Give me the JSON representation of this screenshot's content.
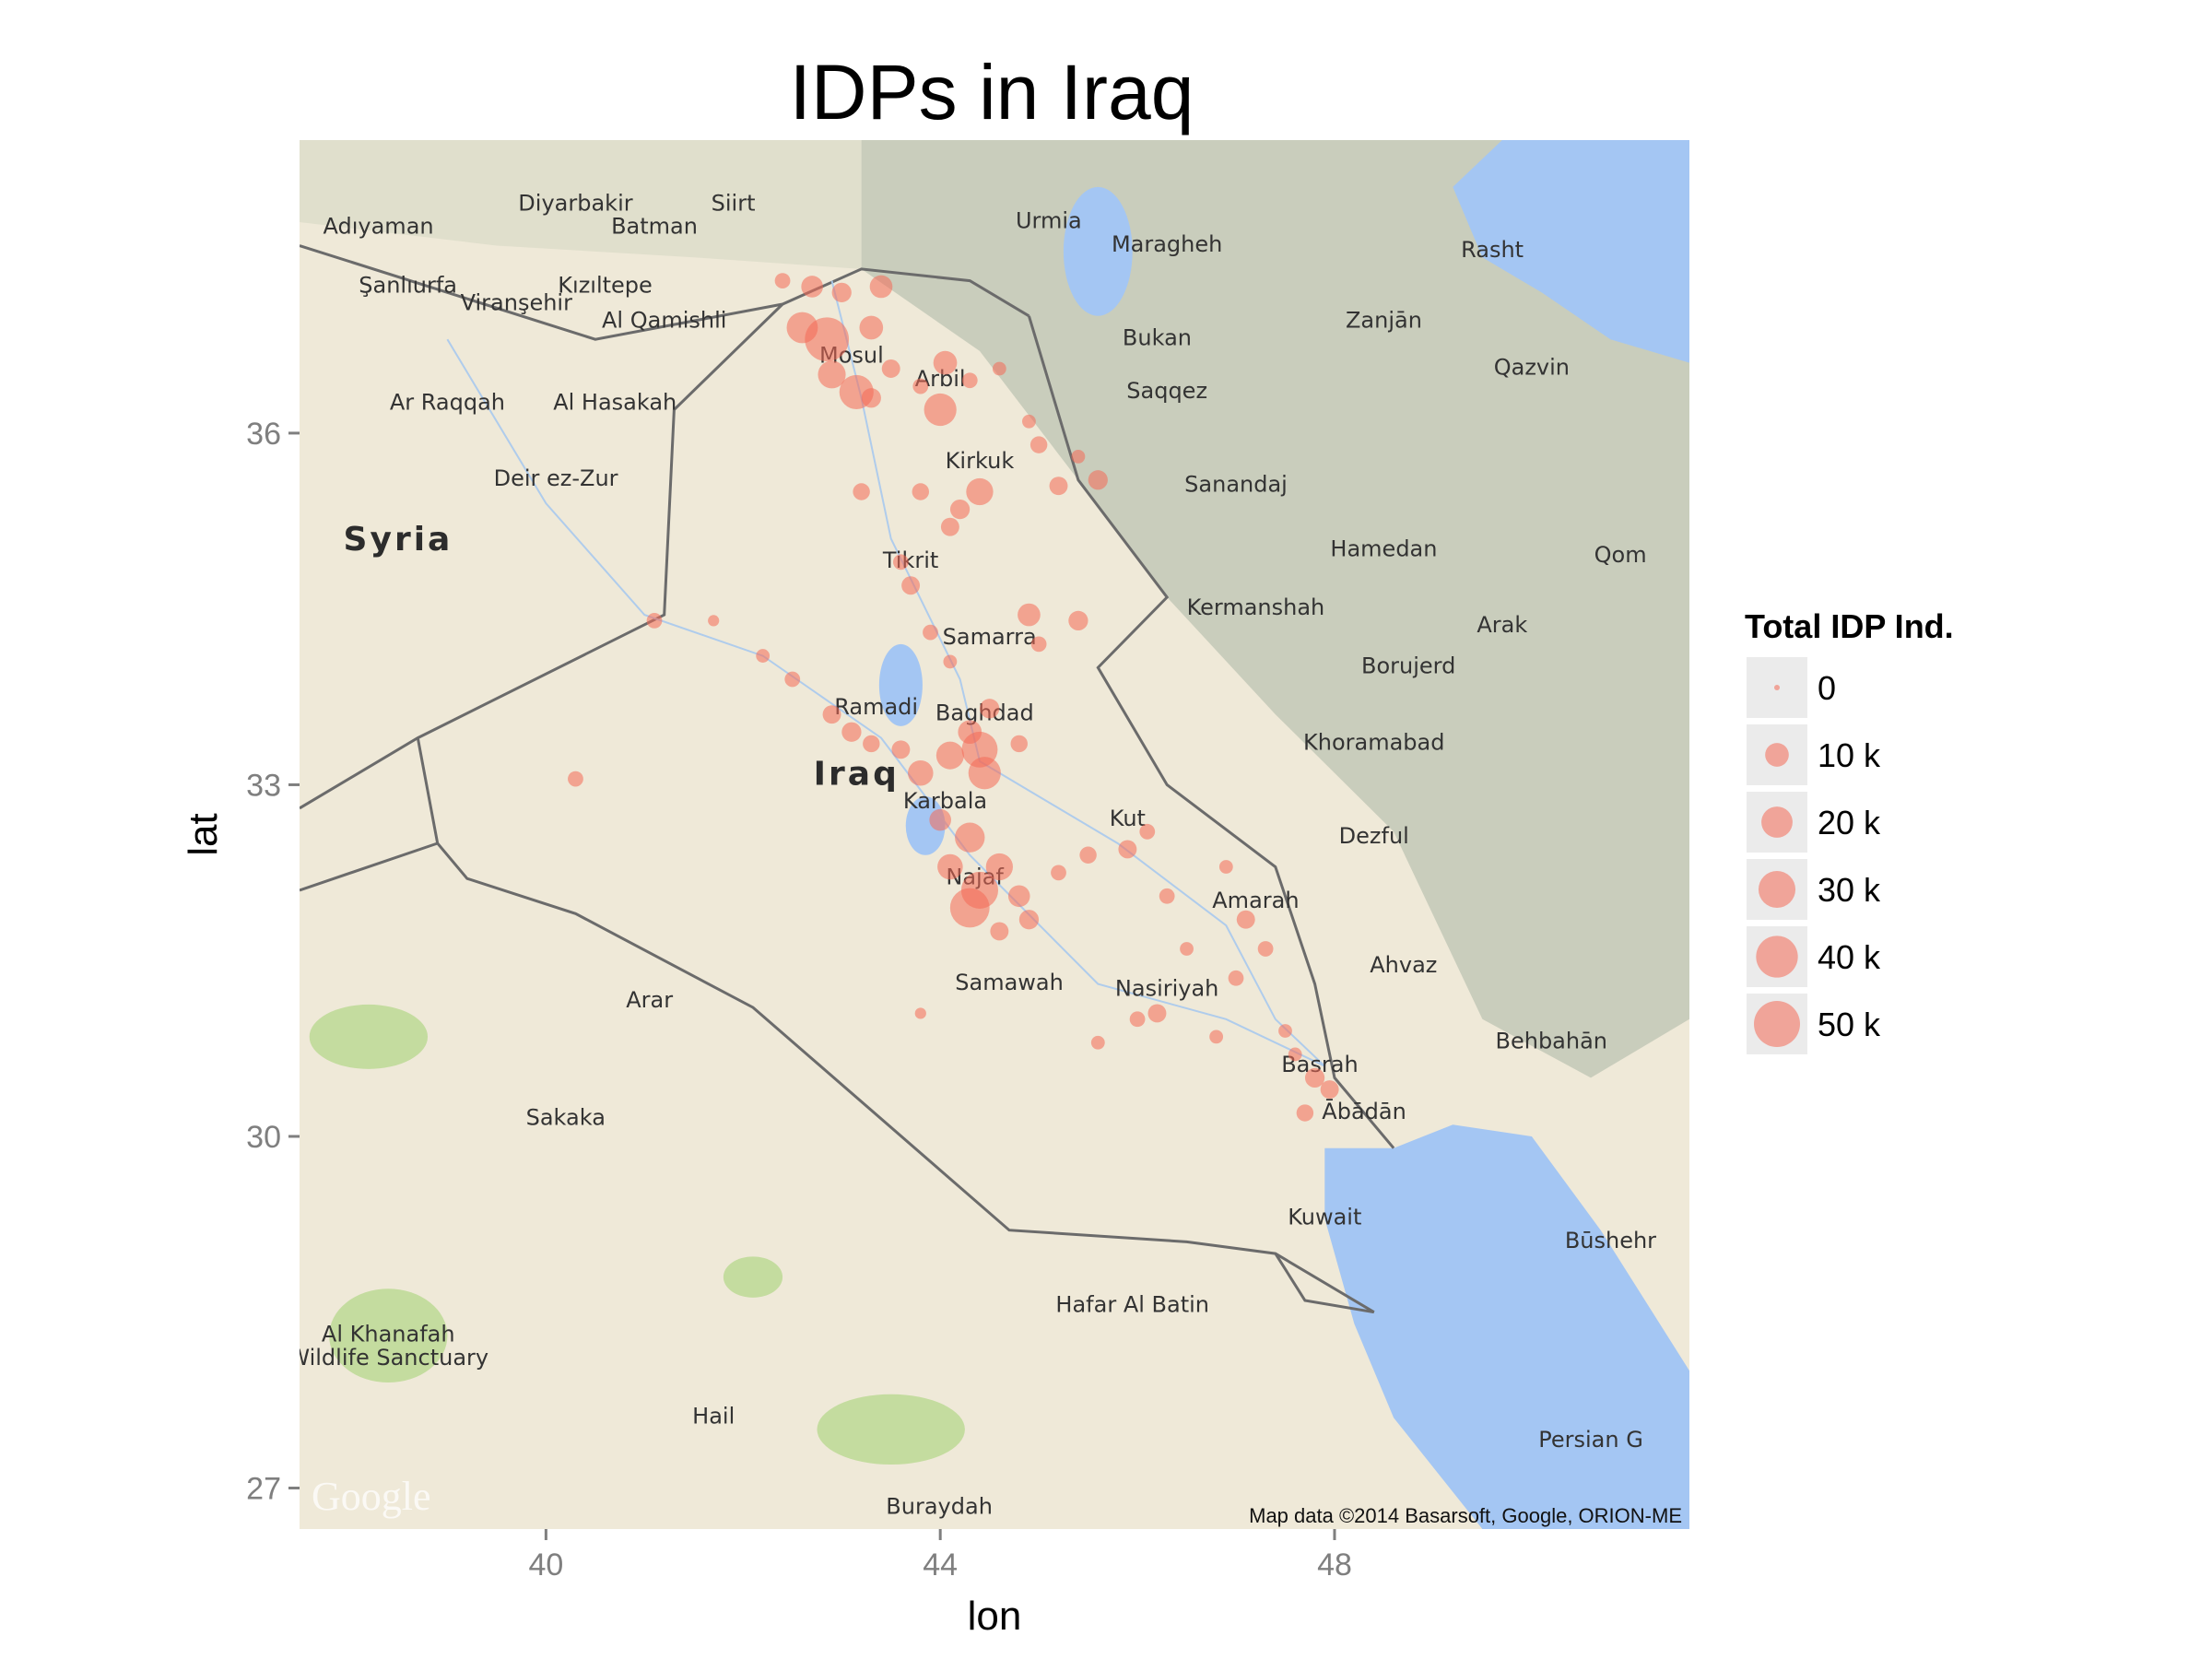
{
  "title": "IDPs in Iraq",
  "axes": {
    "x_label": "lon",
    "y_label": "lat",
    "x_ticks": [
      "40",
      "44",
      "48"
    ],
    "y_ticks": [
      "27",
      "30",
      "33",
      "36"
    ]
  },
  "legend": {
    "title": "Total IDP Ind.",
    "items": [
      "0",
      "10 k",
      "20 k",
      "30 k",
      "40 k",
      "50 k"
    ]
  },
  "map": {
    "attribution": "Map data ©2014 Basarsoft, Google, ORION-ME",
    "logo": "Google",
    "colors": {
      "land": "#efe9d8",
      "water": "#a4c6f3",
      "mountain": "#bfc6b5",
      "border": "#6b6b6b",
      "park": "#c4dc9f",
      "points": "#f46a55"
    },
    "labels": [
      {
        "t": "Diyarbakir",
        "lon": 40.3,
        "lat": 37.9
      },
      {
        "t": "Siirt",
        "lon": 41.9,
        "lat": 37.9
      },
      {
        "t": "Adıyaman",
        "lon": 38.3,
        "lat": 37.7
      },
      {
        "t": "Batman",
        "lon": 41.1,
        "lat": 37.7
      },
      {
        "t": "Şanlıurfa",
        "lon": 38.6,
        "lat": 37.2
      },
      {
        "t": "Kızıltepe",
        "lon": 40.6,
        "lat": 37.2
      },
      {
        "t": "Viranşehir",
        "lon": 39.7,
        "lat": 37.05
      },
      {
        "t": "Al Qamishli",
        "lon": 41.2,
        "lat": 36.9
      },
      {
        "t": "Ar Raqqah",
        "lon": 39.0,
        "lat": 36.2
      },
      {
        "t": "Al Hasakah",
        "lon": 40.7,
        "lat": 36.2
      },
      {
        "t": "Deir ez-Zur",
        "lon": 40.1,
        "lat": 35.55
      },
      {
        "t": "Urmia",
        "lon": 45.1,
        "lat": 37.75
      },
      {
        "t": "Maragheh",
        "lon": 46.3,
        "lat": 37.55
      },
      {
        "t": "Rasht",
        "lon": 49.6,
        "lat": 37.5
      },
      {
        "t": "Zanjān",
        "lon": 48.5,
        "lat": 36.9
      },
      {
        "t": "Bukan",
        "lon": 46.2,
        "lat": 36.75
      },
      {
        "t": "Qazvin",
        "lon": 50.0,
        "lat": 36.5
      },
      {
        "t": "Mosul",
        "lon": 43.1,
        "lat": 36.6
      },
      {
        "t": "Arbil",
        "lon": 44.0,
        "lat": 36.4
      },
      {
        "t": "Saqqez",
        "lon": 46.3,
        "lat": 36.3
      },
      {
        "t": "Kirkuk",
        "lon": 44.4,
        "lat": 35.7
      },
      {
        "t": "Sanandaj",
        "lon": 47.0,
        "lat": 35.5
      },
      {
        "t": "Hamedan",
        "lon": 48.5,
        "lat": 34.95
      },
      {
        "t": "Qom",
        "lon": 50.9,
        "lat": 34.9
      },
      {
        "t": "Tikrit",
        "lon": 43.7,
        "lat": 34.85
      },
      {
        "t": "Kermanshah",
        "lon": 47.2,
        "lat": 34.45
      },
      {
        "t": "Arak",
        "lon": 49.7,
        "lat": 34.3
      },
      {
        "t": "Samarra",
        "lon": 44.5,
        "lat": 34.2
      },
      {
        "t": "Borujerd",
        "lon": 48.75,
        "lat": 33.95
      },
      {
        "t": "Ramadi",
        "lon": 43.35,
        "lat": 33.6
      },
      {
        "t": "Baghdad",
        "lon": 44.45,
        "lat": 33.55
      },
      {
        "t": "Khoramabad",
        "lon": 48.4,
        "lat": 33.3
      },
      {
        "t": "Karbala",
        "lon": 44.05,
        "lat": 32.8
      },
      {
        "t": "Kut",
        "lon": 45.9,
        "lat": 32.65
      },
      {
        "t": "Dezful",
        "lon": 48.4,
        "lat": 32.5
      },
      {
        "t": "Najaf",
        "lon": 44.35,
        "lat": 32.15
      },
      {
        "t": "Amarah",
        "lon": 47.2,
        "lat": 31.95
      },
      {
        "t": "Ahvaz",
        "lon": 48.7,
        "lat": 31.4
      },
      {
        "t": "Samawah",
        "lon": 44.7,
        "lat": 31.25
      },
      {
        "t": "Nasiriyah",
        "lon": 46.3,
        "lat": 31.2
      },
      {
        "t": "Arar",
        "lon": 41.05,
        "lat": 31.1
      },
      {
        "t": "Basrah",
        "lon": 47.85,
        "lat": 30.55
      },
      {
        "t": "Behbahān",
        "lon": 50.2,
        "lat": 30.75
      },
      {
        "t": "Sakaka",
        "lon": 40.2,
        "lat": 30.1
      },
      {
        "t": "Ābādān",
        "lon": 48.3,
        "lat": 30.15
      },
      {
        "t": "Kuwait",
        "lon": 47.9,
        "lat": 29.25
      },
      {
        "t": "Būshehr",
        "lon": 50.8,
        "lat": 29.05
      },
      {
        "t": "Hafar Al Batin",
        "lon": 45.95,
        "lat": 28.5
      },
      {
        "t": "Al Khanafah",
        "lon": 38.4,
        "lat": 28.25
      },
      {
        "t": "Wildlife Sanctuary",
        "lon": 38.4,
        "lat": 28.05
      },
      {
        "t": "Hail",
        "lon": 41.7,
        "lat": 27.55
      },
      {
        "t": "Buraydah",
        "lon": 43.99,
        "lat": 26.78
      },
      {
        "t": "Persian G",
        "lon": 50.6,
        "lat": 27.35
      }
    ],
    "country_labels": [
      {
        "t": "Syria",
        "lon": 38.5,
        "lat": 35.0
      },
      {
        "t": "Iraq",
        "lon": 43.15,
        "lat": 33.0
      }
    ]
  },
  "chart_data": {
    "type": "scatter",
    "title": "IDPs in Iraq",
    "xlabel": "lon",
    "ylabel": "lat",
    "xlim": [
      37.5,
      51.6
    ],
    "ylim": [
      26.65,
      38.5
    ],
    "size_legend": {
      "title": "Total IDP Ind.",
      "breaks": [
        0,
        10000,
        20000,
        30000,
        40000,
        50000
      ],
      "labels": [
        "0",
        "10 k",
        "20 k",
        "30 k",
        "40 k",
        "50 k"
      ]
    },
    "points": [
      {
        "lon": 42.4,
        "lat": 37.3,
        "v": 3000
      },
      {
        "lon": 42.7,
        "lat": 37.25,
        "v": 8000
      },
      {
        "lon": 42.6,
        "lat": 36.9,
        "v": 20000
      },
      {
        "lon": 42.85,
        "lat": 36.8,
        "v": 45000
      },
      {
        "lon": 43.15,
        "lat": 36.35,
        "v": 25000
      },
      {
        "lon": 42.9,
        "lat": 36.5,
        "v": 15000
      },
      {
        "lon": 43.4,
        "lat": 37.25,
        "v": 9000
      },
      {
        "lon": 43.0,
        "lat": 37.2,
        "v": 6000
      },
      {
        "lon": 43.3,
        "lat": 36.9,
        "v": 10000
      },
      {
        "lon": 43.5,
        "lat": 36.55,
        "v": 5000
      },
      {
        "lon": 43.3,
        "lat": 36.3,
        "v": 6000
      },
      {
        "lon": 43.8,
        "lat": 36.4,
        "v": 3000
      },
      {
        "lon": 44.0,
        "lat": 36.2,
        "v": 22000
      },
      {
        "lon": 44.05,
        "lat": 36.6,
        "v": 10000
      },
      {
        "lon": 44.3,
        "lat": 36.45,
        "v": 3000
      },
      {
        "lon": 44.6,
        "lat": 36.55,
        "v": 2000
      },
      {
        "lon": 44.9,
        "lat": 36.1,
        "v": 2000
      },
      {
        "lon": 45.0,
        "lat": 35.9,
        "v": 4000
      },
      {
        "lon": 44.4,
        "lat": 35.5,
        "v": 14000
      },
      {
        "lon": 44.2,
        "lat": 35.35,
        "v": 6000
      },
      {
        "lon": 43.8,
        "lat": 35.5,
        "v": 4000
      },
      {
        "lon": 43.2,
        "lat": 35.5,
        "v": 4000
      },
      {
        "lon": 44.1,
        "lat": 35.2,
        "v": 5000
      },
      {
        "lon": 45.2,
        "lat": 35.55,
        "v": 5000
      },
      {
        "lon": 45.6,
        "lat": 35.6,
        "v": 6000
      },
      {
        "lon": 45.4,
        "lat": 35.8,
        "v": 2000
      },
      {
        "lon": 43.7,
        "lat": 34.7,
        "v": 5000
      },
      {
        "lon": 43.6,
        "lat": 34.9,
        "v": 3000
      },
      {
        "lon": 43.9,
        "lat": 34.3,
        "v": 3000
      },
      {
        "lon": 44.1,
        "lat": 34.05,
        "v": 2000
      },
      {
        "lon": 44.9,
        "lat": 34.45,
        "v": 9000
      },
      {
        "lon": 45.0,
        "lat": 34.2,
        "v": 3000
      },
      {
        "lon": 45.4,
        "lat": 34.4,
        "v": 6000
      },
      {
        "lon": 42.2,
        "lat": 34.1,
        "v": 2000
      },
      {
        "lon": 41.1,
        "lat": 34.4,
        "v": 3000
      },
      {
        "lon": 41.7,
        "lat": 34.4,
        "v": 1000
      },
      {
        "lon": 42.5,
        "lat": 33.9,
        "v": 3000
      },
      {
        "lon": 42.9,
        "lat": 33.6,
        "v": 5000
      },
      {
        "lon": 43.1,
        "lat": 33.45,
        "v": 6000
      },
      {
        "lon": 43.3,
        "lat": 33.35,
        "v": 4000
      },
      {
        "lon": 43.6,
        "lat": 33.3,
        "v": 5000
      },
      {
        "lon": 43.8,
        "lat": 33.1,
        "v": 12000
      },
      {
        "lon": 44.1,
        "lat": 33.25,
        "v": 15000
      },
      {
        "lon": 44.4,
        "lat": 33.3,
        "v": 28000
      },
      {
        "lon": 44.45,
        "lat": 33.1,
        "v": 22000
      },
      {
        "lon": 44.3,
        "lat": 33.45,
        "v": 10000
      },
      {
        "lon": 44.5,
        "lat": 33.65,
        "v": 6000
      },
      {
        "lon": 44.8,
        "lat": 33.35,
        "v": 4000
      },
      {
        "lon": 40.3,
        "lat": 33.05,
        "v": 3000
      },
      {
        "lon": 44.0,
        "lat": 32.7,
        "v": 8000
      },
      {
        "lon": 44.3,
        "lat": 32.55,
        "v": 18000
      },
      {
        "lon": 44.1,
        "lat": 32.3,
        "v": 12000
      },
      {
        "lon": 44.4,
        "lat": 32.1,
        "v": 30000
      },
      {
        "lon": 44.3,
        "lat": 31.95,
        "v": 35000
      },
      {
        "lon": 44.6,
        "lat": 32.3,
        "v": 14000
      },
      {
        "lon": 44.8,
        "lat": 32.05,
        "v": 8000
      },
      {
        "lon": 44.9,
        "lat": 31.85,
        "v": 6000
      },
      {
        "lon": 44.6,
        "lat": 31.75,
        "v": 5000
      },
      {
        "lon": 45.2,
        "lat": 32.25,
        "v": 3000
      },
      {
        "lon": 45.5,
        "lat": 32.4,
        "v": 4000
      },
      {
        "lon": 45.9,
        "lat": 32.45,
        "v": 5000
      },
      {
        "lon": 46.1,
        "lat": 32.6,
        "v": 3000
      },
      {
        "lon": 46.3,
        "lat": 32.05,
        "v": 3000
      },
      {
        "lon": 46.5,
        "lat": 31.6,
        "v": 2000
      },
      {
        "lon": 46.2,
        "lat": 31.05,
        "v": 5000
      },
      {
        "lon": 46.0,
        "lat": 31.0,
        "v": 3000
      },
      {
        "lon": 45.6,
        "lat": 30.8,
        "v": 2000
      },
      {
        "lon": 43.8,
        "lat": 31.05,
        "v": 1000
      },
      {
        "lon": 47.1,
        "lat": 31.85,
        "v": 5000
      },
      {
        "lon": 47.3,
        "lat": 31.6,
        "v": 3000
      },
      {
        "lon": 47.0,
        "lat": 31.35,
        "v": 3000
      },
      {
        "lon": 46.9,
        "lat": 32.3,
        "v": 2000
      },
      {
        "lon": 47.8,
        "lat": 30.5,
        "v": 6000
      },
      {
        "lon": 47.95,
        "lat": 30.4,
        "v": 5000
      },
      {
        "lon": 47.7,
        "lat": 30.2,
        "v": 4000
      },
      {
        "lon": 47.6,
        "lat": 30.7,
        "v": 2000
      },
      {
        "lon": 47.5,
        "lat": 30.9,
        "v": 2000
      },
      {
        "lon": 46.8,
        "lat": 30.85,
        "v": 2000
      }
    ]
  }
}
